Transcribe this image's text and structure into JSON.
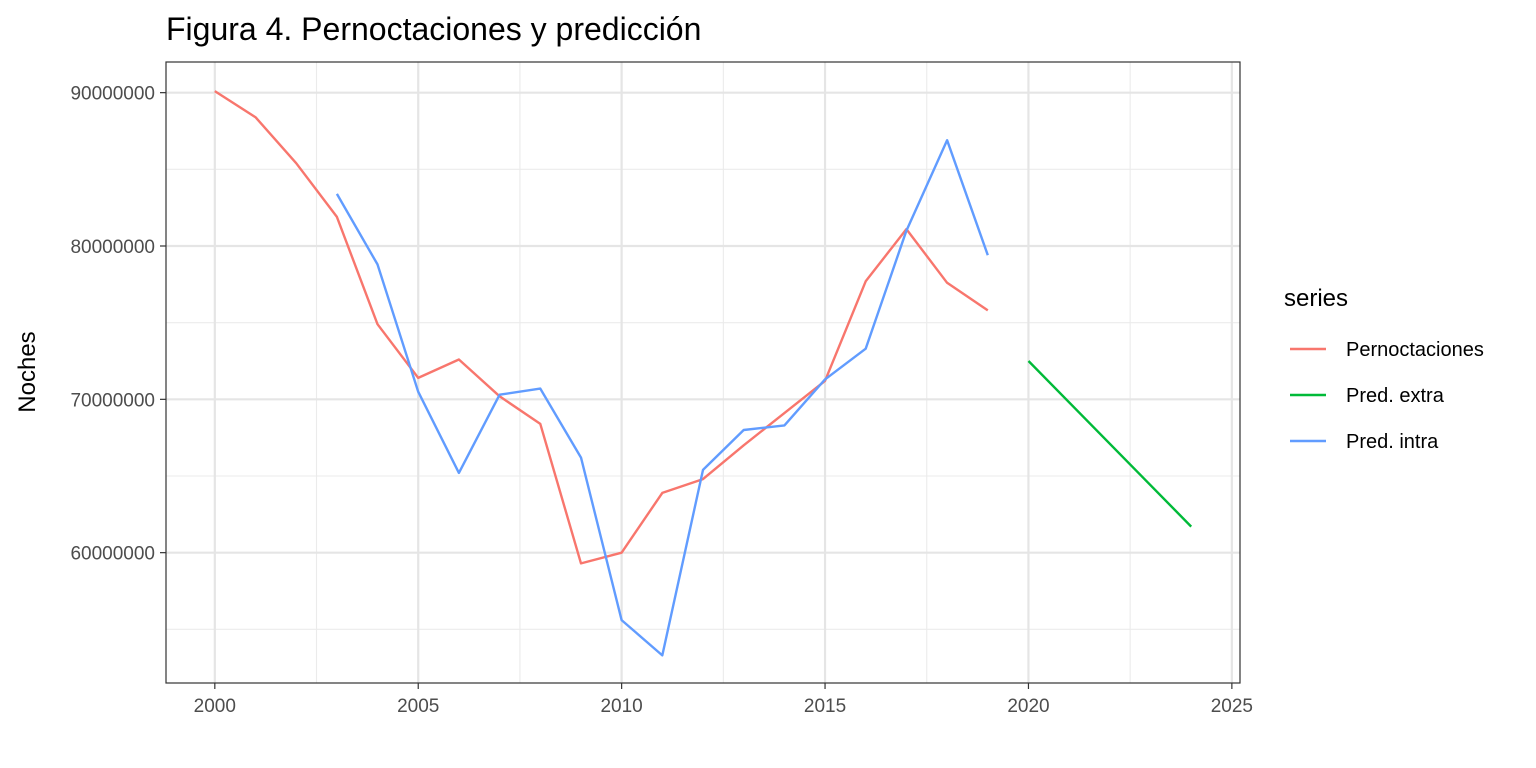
{
  "chart_data": {
    "type": "line",
    "title": "Figura 4. Pernoctaciones y predicción",
    "xlabel": "",
    "ylabel": "Noches",
    "xlim": [
      1998.8,
      2025.2
    ],
    "ylim": [
      51500000,
      92000000
    ],
    "x_ticks": [
      2000,
      2005,
      2010,
      2015,
      2020,
      2025
    ],
    "x_tick_labels": [
      "2000",
      "2005",
      "2010",
      "2015",
      "2020",
      "2025"
    ],
    "y_ticks": [
      60000000,
      70000000,
      80000000,
      90000000
    ],
    "y_tick_labels": [
      "60000000",
      "70000000",
      "80000000",
      "90000000"
    ],
    "grid": true,
    "legend": {
      "title": "series",
      "position": "right"
    },
    "series": [
      {
        "name": "Pernoctaciones",
        "color": "#F8766D",
        "x": [
          2000,
          2001,
          2002,
          2003,
          2004,
          2005,
          2006,
          2007,
          2008,
          2009,
          2010,
          2011,
          2012,
          2013,
          2014,
          2015,
          2016,
          2017,
          2018,
          2019
        ],
        "y": [
          90100000,
          88400000,
          85400000,
          81900000,
          74900000,
          71400000,
          72600000,
          70200000,
          68400000,
          59300000,
          60000000,
          63900000,
          64800000,
          67000000,
          69100000,
          71200000,
          77700000,
          81100000,
          77600000,
          75800000
        ]
      },
      {
        "name": "Pred. extra",
        "color": "#00BA38",
        "x": [
          2020,
          2024
        ],
        "y": [
          72500000,
          61700000
        ]
      },
      {
        "name": "Pred. intra",
        "color": "#619CFF",
        "x": [
          2003,
          2004,
          2005,
          2006,
          2007,
          2008,
          2009,
          2010,
          2011,
          2012,
          2013,
          2014,
          2015,
          2016,
          2017,
          2018,
          2019
        ],
        "y": [
          83400000,
          78800000,
          70500000,
          65200000,
          70300000,
          70700000,
          66200000,
          55600000,
          53300000,
          65400000,
          68000000,
          68300000,
          71300000,
          73300000,
          81000000,
          86900000,
          79400000
        ]
      }
    ]
  }
}
